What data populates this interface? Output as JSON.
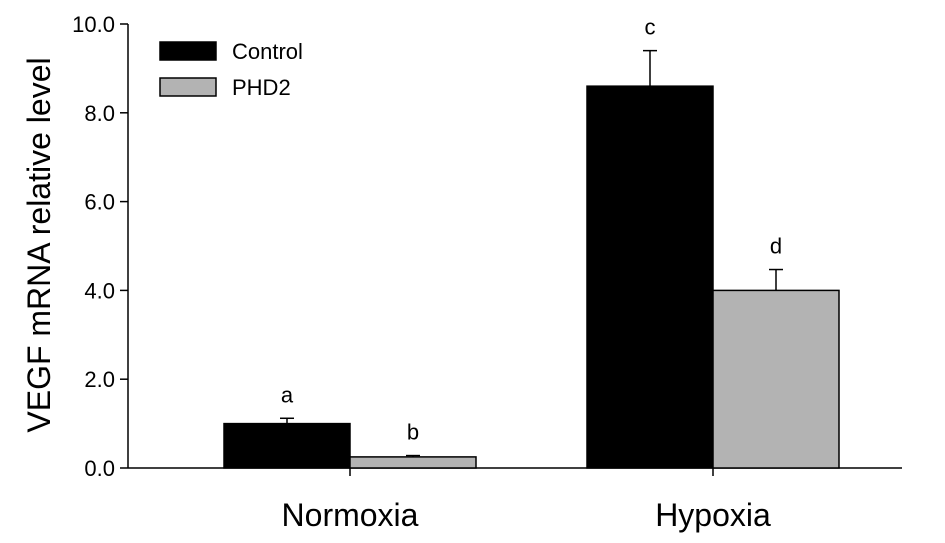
{
  "chart_data": {
    "type": "bar",
    "ylabel": "VEGF mRNA relative level",
    "ylim": [
      0,
      10
    ],
    "yticks": [
      {
        "value": 0,
        "label": "0.0"
      },
      {
        "value": 2,
        "label": "2.0"
      },
      {
        "value": 4,
        "label": "4.0"
      },
      {
        "value": 6,
        "label": "6.0"
      },
      {
        "value": 8,
        "label": "8.0"
      },
      {
        "value": 10,
        "label": "10.0"
      }
    ],
    "categories": [
      "Normoxia",
      "Hypoxia"
    ],
    "series": [
      {
        "name": "Control",
        "color": "#000000",
        "values": [
          1.0,
          8.6
        ],
        "errors": [
          0.12,
          0.8
        ],
        "labels": [
          "a",
          "c"
        ]
      },
      {
        "name": "PHD2",
        "color": "#b3b3b3",
        "values": [
          0.25,
          4.0
        ],
        "errors": [
          0.03,
          0.47
        ],
        "labels": [
          "b",
          "d"
        ]
      }
    ],
    "legend_position": "top-left",
    "grid": false
  }
}
